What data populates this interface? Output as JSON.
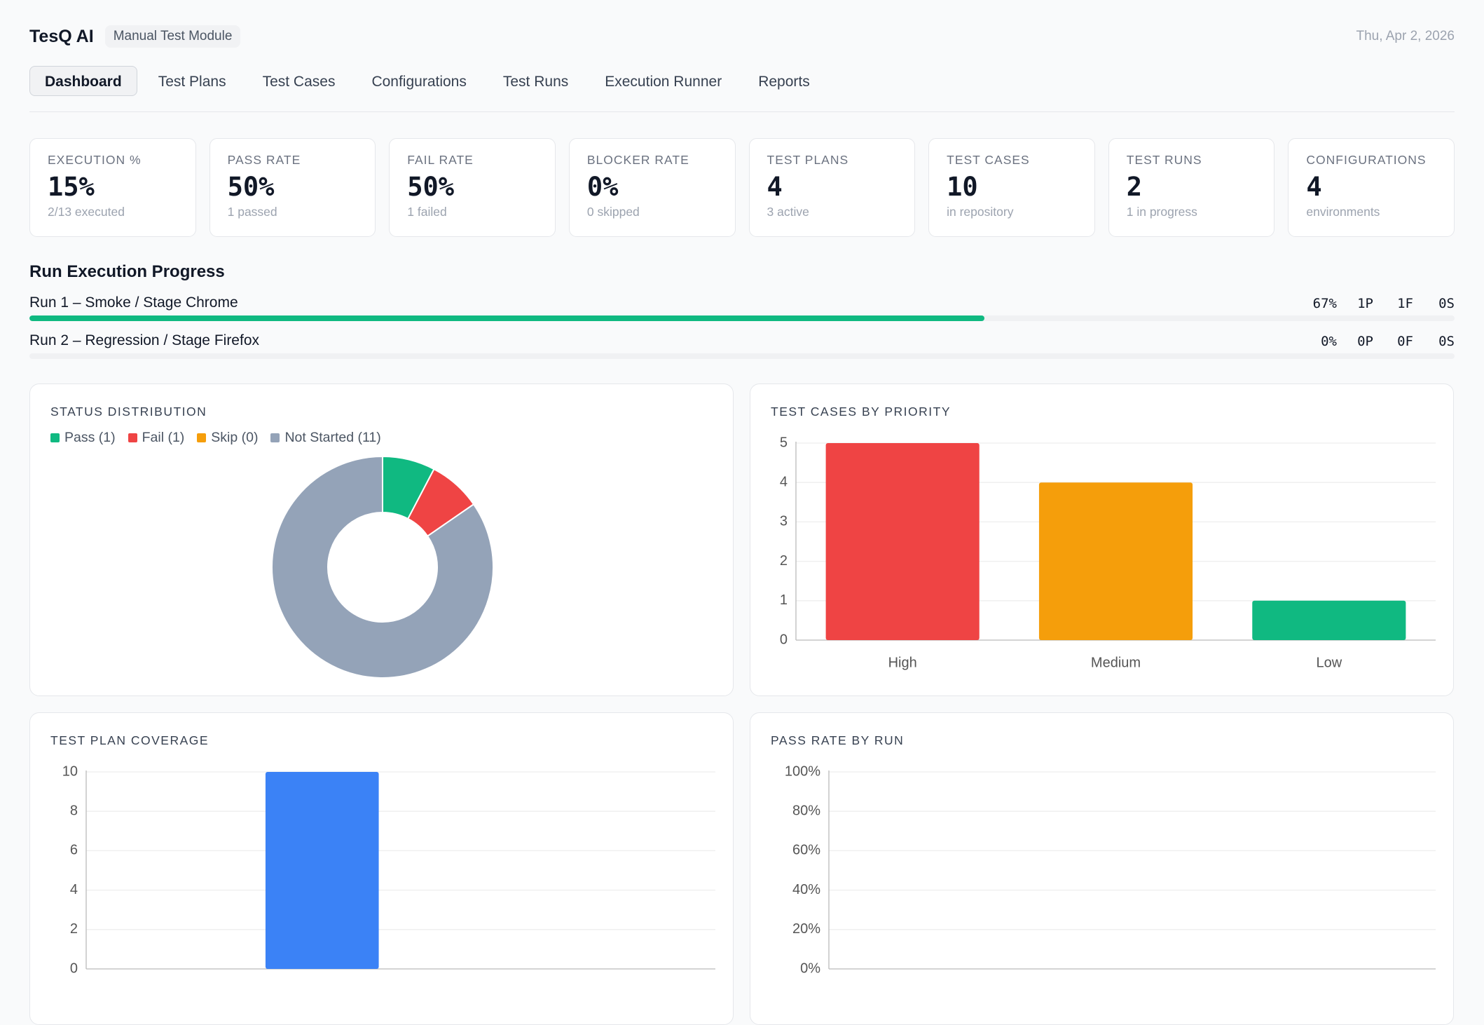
{
  "header": {
    "title": "TesQ AI",
    "badge": "Manual Test Module",
    "date": "Thu, Apr 2, 2026"
  },
  "nav": {
    "tabs": [
      "Dashboard",
      "Test Plans",
      "Test Cases",
      "Configurations",
      "Test Runs",
      "Execution Runner",
      "Reports"
    ],
    "active": 0
  },
  "stats": [
    {
      "label": "EXECUTION %",
      "value": "15%",
      "note": "2/13 executed"
    },
    {
      "label": "PASS RATE",
      "value": "50%",
      "note": "1 passed"
    },
    {
      "label": "FAIL RATE",
      "value": "50%",
      "note": "1 failed"
    },
    {
      "label": "BLOCKER RATE",
      "value": "0%",
      "note": "0 skipped"
    },
    {
      "label": "TEST PLANS",
      "value": "4",
      "note": "3 active"
    },
    {
      "label": "TEST CASES",
      "value": "10",
      "note": "in repository"
    },
    {
      "label": "TEST RUNS",
      "value": "2",
      "note": "1 in progress"
    },
    {
      "label": "CONFIGURATIONS",
      "value": "4",
      "note": "environments"
    }
  ],
  "progress": {
    "title": "Run Execution Progress",
    "color": "#10b981",
    "runs": [
      {
        "name": "Run 1 – Smoke / Stage Chrome",
        "percent": 67,
        "percent_label": "67%",
        "passed": "1P",
        "failed": "1F",
        "skipped": "0S"
      },
      {
        "name": "Run 2 – Regression / Stage Firefox",
        "percent": 0,
        "percent_label": "0%",
        "passed": "0P",
        "failed": "0F",
        "skipped": "0S"
      }
    ]
  },
  "chart_data": [
    {
      "type": "pie",
      "donut": true,
      "title": "STATUS DISTRIBUTION",
      "categories": [
        "Pass (1)",
        "Fail (1)",
        "Skip (0)",
        "Not Started (11)"
      ],
      "values": [
        1,
        1,
        0,
        11
      ],
      "colors": [
        "#10b981",
        "#ef4444",
        "#f59e0b",
        "#94a3b8"
      ]
    },
    {
      "type": "bar",
      "title": "TEST CASES BY PRIORITY",
      "categories": [
        "High",
        "Medium",
        "Low"
      ],
      "values": [
        5,
        4,
        1
      ],
      "colors": [
        "#ef4444",
        "#f59e0b",
        "#10b981"
      ],
      "ylim": [
        0,
        5
      ],
      "yticks": [
        0,
        1,
        2,
        3,
        4,
        5
      ],
      "grid": true
    },
    {
      "type": "bar",
      "title": "TEST PLAN COVERAGE",
      "categories": [
        null,
        null,
        null,
        null
      ],
      "values": [
        null,
        10,
        null,
        null
      ],
      "colors": [
        "#3b82f6",
        "#3b82f6",
        "#3b82f6",
        "#3b82f6"
      ],
      "ylim": [
        0,
        10
      ],
      "yticks": [
        0,
        2,
        4,
        6,
        8,
        10
      ],
      "grid": true
    },
    {
      "type": "bar",
      "title": "PASS RATE BY RUN",
      "categories": [],
      "values": [],
      "colors": [],
      "ylim": [
        0,
        100
      ],
      "yticks": [
        {
          "value": 0,
          "label": "0%"
        },
        {
          "value": 20,
          "label": "20%"
        },
        {
          "value": 40,
          "label": "40%"
        },
        {
          "value": 60,
          "label": "60%"
        },
        {
          "value": 80,
          "label": "80%"
        },
        {
          "value": 100,
          "label": "100%"
        }
      ],
      "grid": true
    }
  ]
}
